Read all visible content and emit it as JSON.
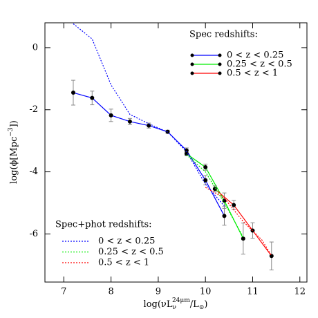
{
  "chart_data": {
    "type": "line",
    "x_label": [
      "log(νL",
      "ν",
      "24μm",
      "/L",
      "⊙",
      ")"
    ],
    "y_label": [
      "log(ϕ[Mpc",
      "−3",
      "])"
    ],
    "spec_legend_title": "Spec redshifts:",
    "phot_legend_title": "Spec+phot redshifts:",
    "xlim": [
      6.6,
      12.15
    ],
    "ylim": [
      -7.55,
      0.8
    ],
    "xticks": [
      7,
      8,
      9,
      10,
      11,
      12
    ],
    "yticks": [
      0,
      -2,
      -4,
      -6
    ],
    "series": [
      {
        "name": "0 < z < 0.25",
        "color": "#0000ff",
        "linestyle": "solid",
        "markers": true,
        "x": [
          7.2,
          7.6,
          8.0,
          8.4,
          8.8,
          9.2,
          9.6,
          10.0,
          10.4
        ],
        "values": [
          -1.45,
          -1.62,
          -2.18,
          -2.38,
          -2.51,
          -2.71,
          -3.31,
          -4.27,
          -5.42
        ],
        "errors": [
          0.4,
          0.22,
          0.2,
          0.1,
          0.08,
          0.05,
          0.08,
          0.15,
          0.3
        ]
      },
      {
        "name": "0.25 < z < 0.5",
        "color": "#00ee00",
        "linestyle": "solid",
        "markers": true,
        "x": [
          9.6,
          10.0,
          10.4,
          10.8
        ],
        "values": [
          -3.42,
          -3.85,
          -4.93,
          -6.15
        ],
        "errors": [
          0.05,
          0.1,
          0.25,
          0.5
        ]
      },
      {
        "name": "0.5 < z < 1",
        "color": "#ff0000",
        "linestyle": "solid",
        "markers": true,
        "x": [
          10.2,
          10.6,
          11.0,
          11.4
        ],
        "values": [
          -4.55,
          -5.07,
          -5.89,
          -6.71
        ],
        "errors": [
          0.1,
          0.15,
          0.25,
          0.45
        ]
      },
      {
        "name": "0 < z < 0.25",
        "color": "#0000ff",
        "linestyle": "dotted",
        "markers": false,
        "x": [
          7.2,
          7.6,
          8.0,
          8.4,
          8.8,
          9.2,
          9.6,
          10.0,
          10.4
        ],
        "values": [
          0.77,
          0.28,
          -1.2,
          -2.15,
          -2.45,
          -2.72,
          -3.35,
          -4.4,
          -5.1
        ]
      },
      {
        "name": "0.25 < z < 0.5",
        "color": "#00ee00",
        "linestyle": "dotted",
        "markers": false,
        "x": [
          9.6,
          10.0,
          10.4,
          10.8
        ],
        "values": [
          -3.45,
          -4.0,
          -5.0,
          -6.1
        ]
      },
      {
        "name": "0.5 < z < 1",
        "color": "#ff0000",
        "linestyle": "dotted",
        "markers": false,
        "x": [
          10.0,
          10.4,
          10.8,
          11.2,
          11.4
        ],
        "values": [
          -4.5,
          -4.85,
          -5.6,
          -6.2,
          -6.7
        ]
      }
    ]
  }
}
